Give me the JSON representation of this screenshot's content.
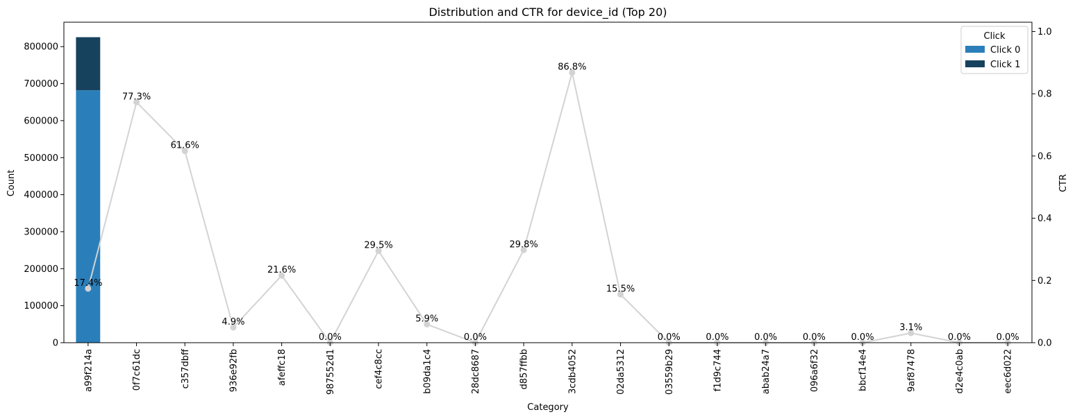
{
  "chart_data": {
    "type": "bar",
    "title": "Distribution and CTR for device_id (Top 20)",
    "xlabel": "Category",
    "ylabel": "Count",
    "y2label": "CTR",
    "ylim": [
      0,
      866000
    ],
    "y2lim": [
      0,
      1.03
    ],
    "yticks": [
      0,
      100000,
      200000,
      300000,
      400000,
      500000,
      600000,
      700000,
      800000
    ],
    "y2ticks": [
      0.0,
      0.2,
      0.4,
      0.6,
      0.8,
      1.0
    ],
    "categories": [
      "a99f214a",
      "0f7c61dc",
      "c357dbff",
      "936e92fb",
      "afeffc18",
      "987552d1",
      "cef4c8cc",
      "b09da1c4",
      "28dc8687",
      "d857ffbb",
      "3cdb4052",
      "02da5312",
      "03559b29",
      "f1d9c744",
      "abab24a7",
      "096a6f32",
      "bbcf14e4",
      "9af87478",
      "d2e4c0ab",
      "eec6d022"
    ],
    "series": [
      {
        "name": "Click 0",
        "type": "bar",
        "color": "#2a7fba",
        "values": [
          682000,
          10,
          10,
          10,
          10,
          10,
          10,
          10,
          10,
          10,
          10,
          10,
          10,
          10,
          10,
          10,
          10,
          10,
          10,
          10
        ]
      },
      {
        "name": "Click 1",
        "type": "bar",
        "color": "#17425e",
        "values": [
          143500,
          30,
          25,
          1,
          5,
          0,
          5,
          1,
          0,
          5,
          30,
          3,
          0,
          0,
          0,
          0,
          0,
          1,
          0,
          0
        ]
      },
      {
        "name": "CTR",
        "type": "line",
        "color": "#d3d3d3",
        "axis": "y2",
        "values": [
          0.174,
          0.773,
          0.616,
          0.049,
          0.216,
          0.0,
          0.295,
          0.059,
          0.0,
          0.298,
          0.868,
          0.155,
          0.0,
          0.0,
          0.0,
          0.0,
          0.0,
          0.031,
          0.0,
          0.0
        ]
      }
    ],
    "point_labels": [
      "17.4%",
      "77.3%",
      "61.6%",
      "4.9%",
      "21.6%",
      "0.0%",
      "29.5%",
      "5.9%",
      "0.0%",
      "29.8%",
      "86.8%",
      "15.5%",
      "0.0%",
      "0.0%",
      "0.0%",
      "0.0%",
      "0.0%",
      "3.1%",
      "0.0%",
      "0.0%"
    ],
    "legend": {
      "title": "Click",
      "position": "top-right",
      "items": [
        "Click 0",
        "Click 1"
      ]
    },
    "grid": false
  }
}
